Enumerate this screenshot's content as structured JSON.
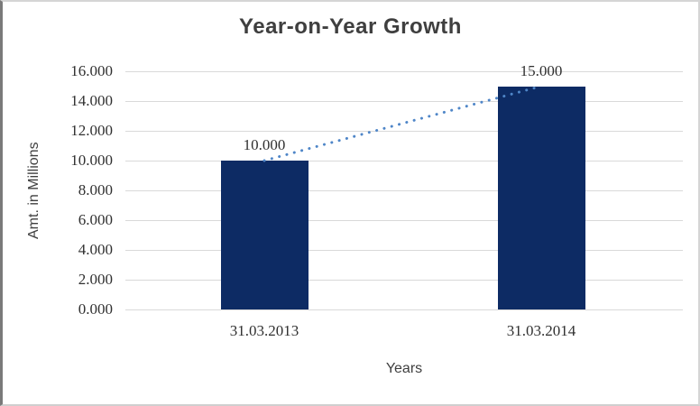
{
  "chart_data": {
    "type": "bar",
    "title": "Year-on-Year Growth",
    "xlabel": "Years",
    "ylabel": "Amt. in Millions",
    "categories": [
      "31.03.2013",
      "31.03.2014"
    ],
    "values": [
      10,
      15
    ],
    "data_labels": [
      "10.000",
      "15.000"
    ],
    "ylim": [
      0,
      16
    ],
    "yticks": [
      0,
      2,
      4,
      6,
      8,
      10,
      12,
      14,
      16
    ],
    "ytick_labels": [
      "0.000",
      "2.000",
      "4.000",
      "6.000",
      "8.000",
      "10.000",
      "12.000",
      "14.000",
      "16.000"
    ],
    "grid": true,
    "legend_position": "none",
    "trendline": {
      "style": "dotted",
      "connects": [
        "31.03.2013",
        "31.03.2014"
      ],
      "from_value": 10,
      "to_value": 15
    },
    "colors": {
      "bar": "#0d2b64",
      "trendline": "#4f86c8",
      "gridline": "#d9d9d9",
      "title_text": "#3f3f3f",
      "tick_text": "#303030",
      "background": "#ffffff"
    }
  }
}
